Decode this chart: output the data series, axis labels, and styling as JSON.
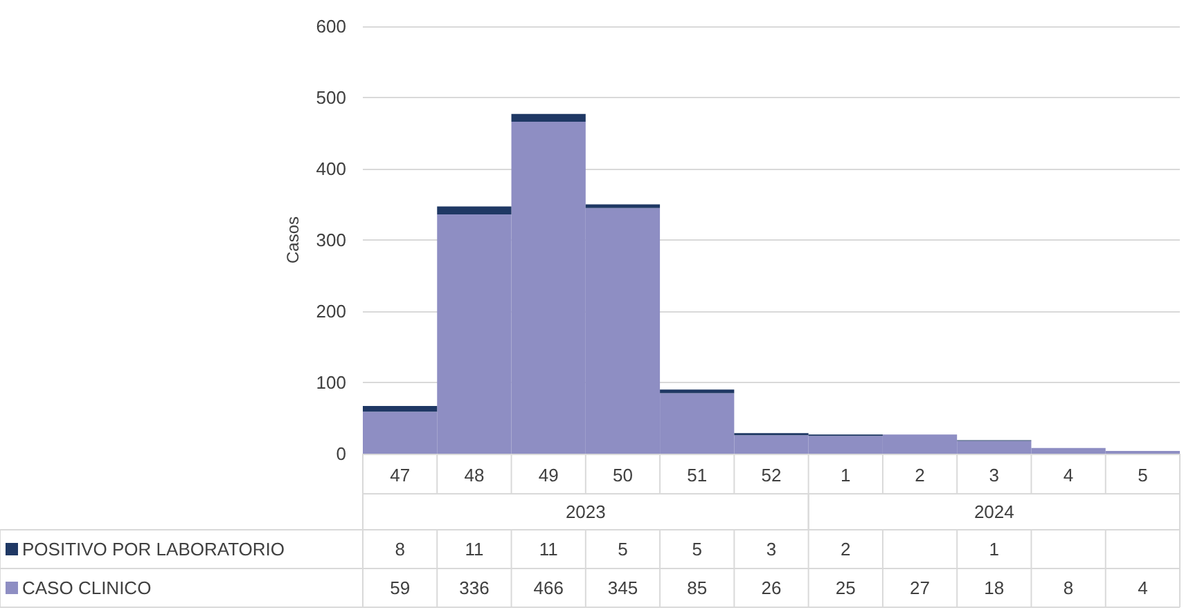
{
  "chart_data": {
    "type": "bar",
    "stacked": true,
    "ylabel": "Casos",
    "categories": [
      "47",
      "48",
      "49",
      "50",
      "51",
      "52",
      "1",
      "2",
      "3",
      "4",
      "5"
    ],
    "series": [
      {
        "name": "CASO CLINICO",
        "color": "#8e8ec3",
        "values": [
          59,
          336,
          466,
          345,
          85,
          26,
          25,
          27,
          18,
          8,
          4
        ]
      },
      {
        "name": "POSITIVO POR LABORATORIO",
        "color": "#1f3864",
        "values": [
          8,
          11,
          11,
          5,
          5,
          3,
          2,
          null,
          1,
          null,
          null
        ]
      }
    ],
    "annotations": [
      "2023",
      "2024"
    ],
    "ylim": [
      0,
      600
    ],
    "yticks": [
      0,
      100,
      200,
      300,
      400,
      500,
      600
    ],
    "grid": "y",
    "legend": "bottom",
    "data_labels": true
  }
}
